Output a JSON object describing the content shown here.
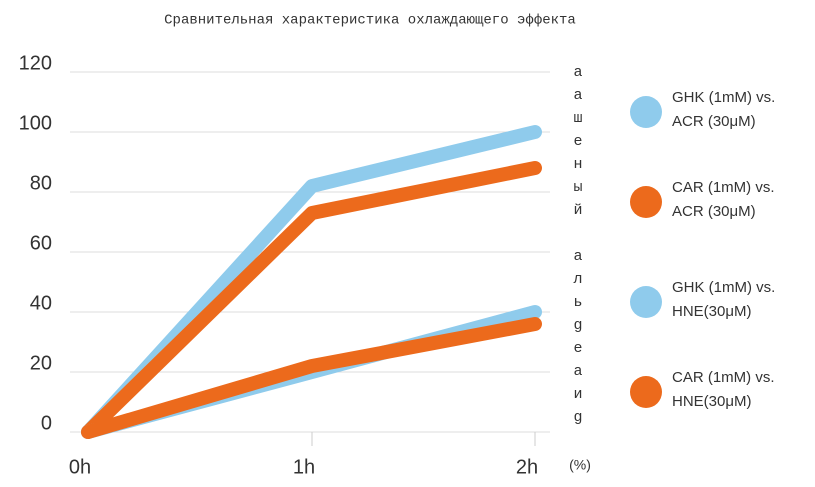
{
  "chart_data": {
    "type": "line",
    "title": "Сравнительная характеристика охлаждающего эффекта",
    "y_label": "аашеный альgеаиg",
    "y_unit": "(%)",
    "categories": [
      "0h",
      "1h",
      "2h"
    ],
    "series": [
      {
        "name": "GHK (1mM) vs. ACR (30μM)",
        "color": "#8fcbec",
        "values": [
          0,
          82,
          100
        ]
      },
      {
        "name": "CAR (1mM) vs. ACR (30μM)",
        "color": "#ec6a1c",
        "values": [
          0,
          73,
          88
        ]
      },
      {
        "name": "GHK (1mM) vs. HNE(30μM)",
        "color": "#8fcbec",
        "values": [
          0,
          20,
          40
        ]
      },
      {
        "name": "CAR (1mM) vs. HNE(30μM)",
        "color": "#ec6a1c",
        "values": [
          0,
          22,
          36
        ]
      }
    ],
    "ylim": [
      0,
      120
    ],
    "yticks": [
      0,
      20,
      40,
      60,
      80,
      100,
      120
    ],
    "grid": true
  }
}
